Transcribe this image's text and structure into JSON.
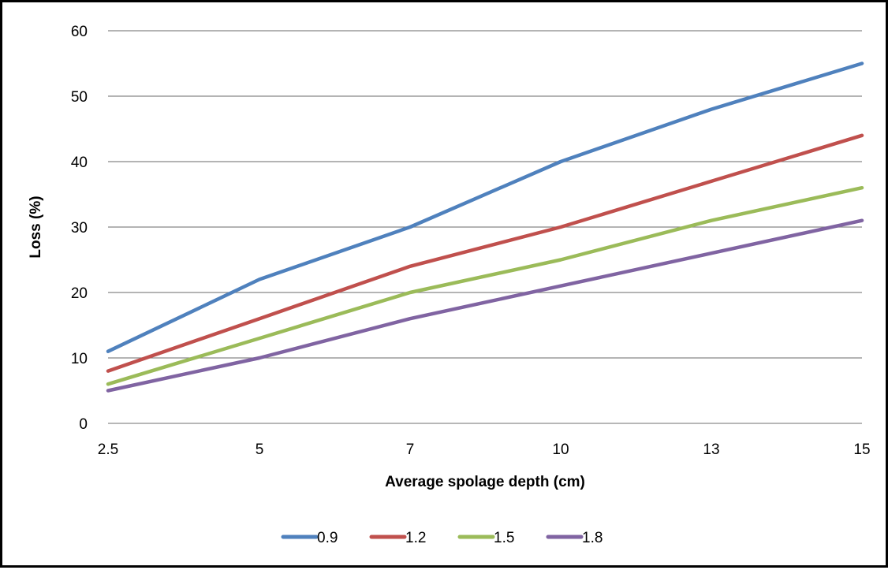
{
  "chart_data": {
    "type": "line",
    "title": "",
    "xlabel": "Average spolage depth (cm)",
    "ylabel": "Loss (%)",
    "categories": [
      "2.5",
      "5",
      "7",
      "10",
      "13",
      "15"
    ],
    "ylim": [
      0,
      60
    ],
    "yticks": [
      "0",
      "10",
      "20",
      "30",
      "40",
      "50",
      "60"
    ],
    "grid": true,
    "legend_position": "bottom",
    "series": [
      {
        "name": "0.9",
        "color": "#4F81BD",
        "values": [
          11,
          22,
          30,
          40,
          48,
          55
        ]
      },
      {
        "name": "1.2",
        "color": "#C0504D",
        "values": [
          8,
          16,
          24,
          30,
          37,
          44
        ]
      },
      {
        "name": "1.5",
        "color": "#9BBB59",
        "values": [
          6,
          13,
          20,
          25,
          31,
          36
        ]
      },
      {
        "name": "1.8",
        "color": "#8064A2",
        "values": [
          5,
          10,
          16,
          21,
          26,
          31
        ]
      }
    ]
  }
}
